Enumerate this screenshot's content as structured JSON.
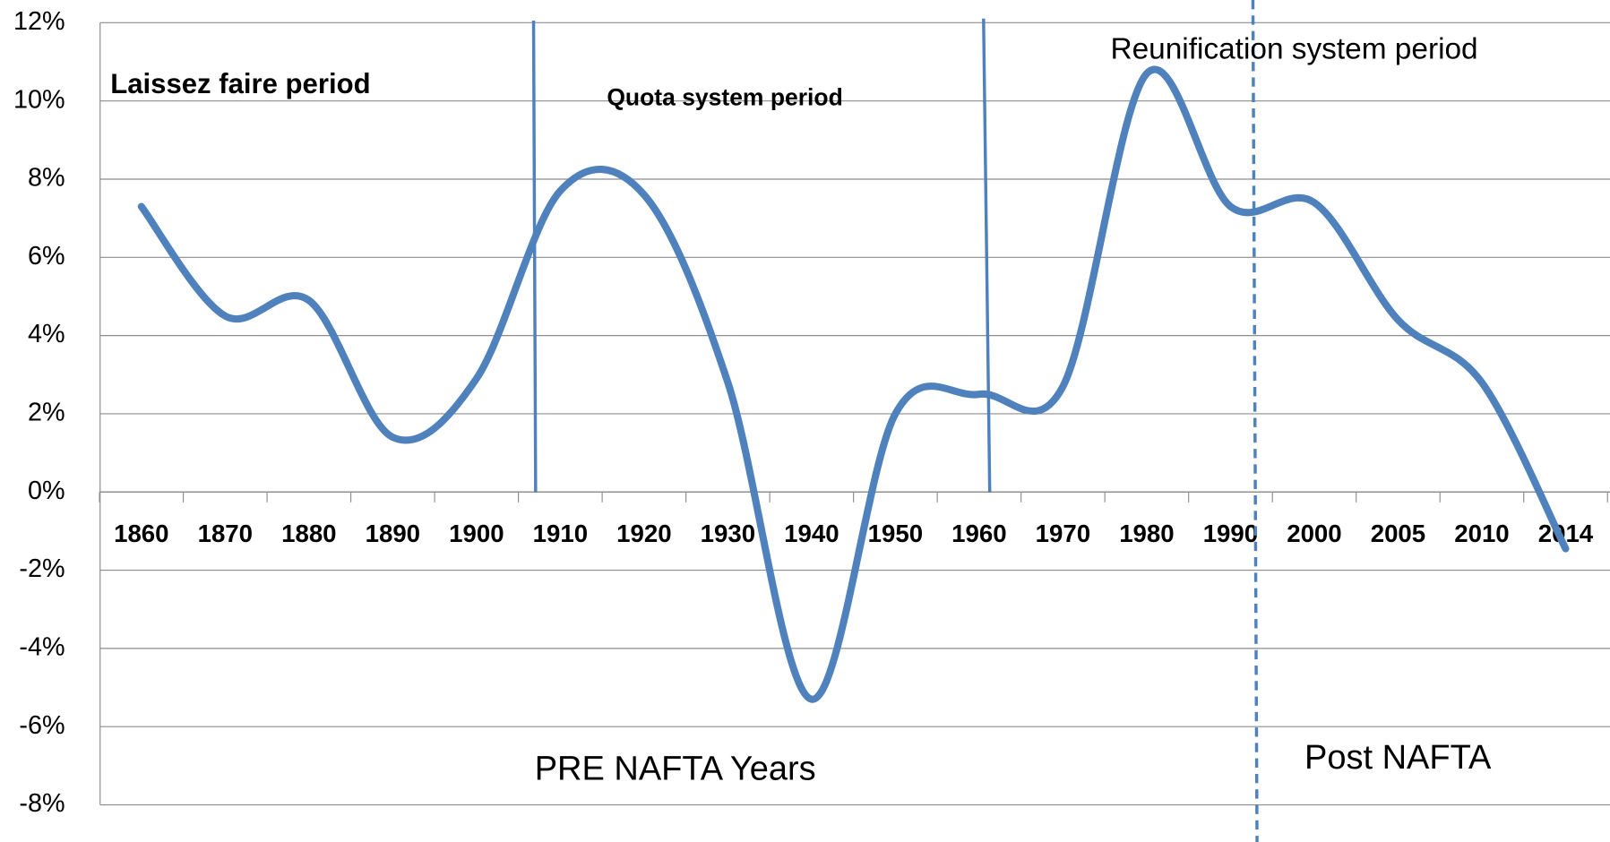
{
  "chart_data": {
    "type": "line",
    "categories": [
      "1860",
      "1870",
      "1880",
      "1890",
      "1900",
      "1910",
      "1920",
      "1930",
      "1940",
      "1950",
      "1960",
      "1970",
      "1980",
      "1990",
      "2000",
      "2005",
      "2010",
      "2014"
    ],
    "values": [
      7.3,
      4.5,
      4.9,
      1.4,
      2.9,
      7.7,
      7.6,
      2.8,
      -5.3,
      2.0,
      2.5,
      2.7,
      10.7,
      7.3,
      7.4,
      4.4,
      2.8,
      -1.45
    ],
    "color": "#4f81bd",
    "ylim": [
      -8,
      12
    ],
    "yticks": [
      {
        "value": -8,
        "label": "-8%"
      },
      {
        "value": -6,
        "label": "-6%"
      },
      {
        "value": -4,
        "label": "-4%"
      },
      {
        "value": -2,
        "label": "-2%"
      },
      {
        "value": 0,
        "label": "0%"
      },
      {
        "value": 2,
        "label": "2%"
      },
      {
        "value": 4,
        "label": "4%"
      },
      {
        "value": 6,
        "label": "6%"
      },
      {
        "value": 8,
        "label": "8%"
      },
      {
        "value": 10,
        "label": "10%"
      },
      {
        "value": 12,
        "label": "12%"
      }
    ],
    "grid": true,
    "annotations": [
      "Laissez faire period",
      "Quota system period",
      "Reunification system period",
      "PRE NAFTA Years",
      "Post NAFTA"
    ]
  }
}
